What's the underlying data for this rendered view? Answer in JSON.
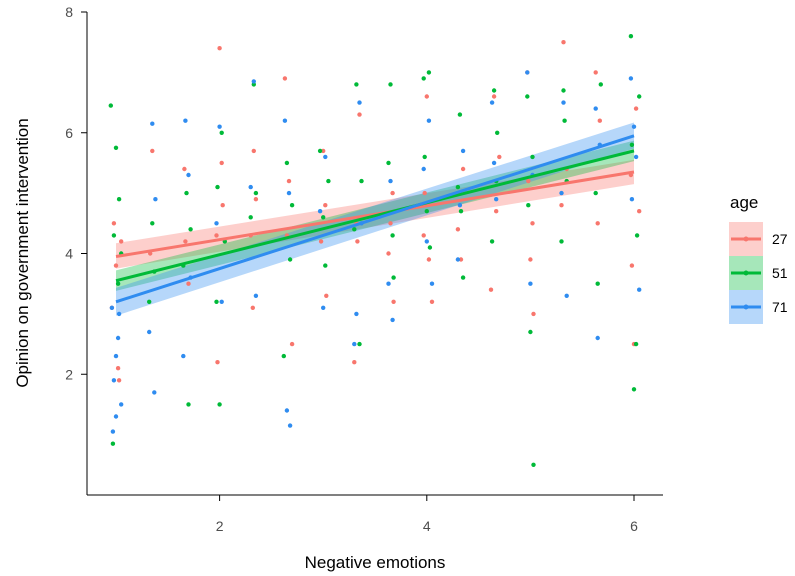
{
  "chart_data": {
    "type": "scatter",
    "title": "",
    "xlabel": "Negative emotions",
    "ylabel": "Opinion on government intervention",
    "xlim": [
      0.72,
      6.28
    ],
    "ylim": [
      0.0,
      8.0
    ],
    "x_ticks": [
      "2",
      "4",
      "6"
    ],
    "y_ticks": [
      "2",
      "4",
      "6",
      "8"
    ],
    "grid": false,
    "legend": {
      "title": "age",
      "position": "right"
    },
    "series": [
      {
        "name": "27",
        "color": "#f8766d",
        "fit": {
          "x": [
            1.0,
            6.0
          ],
          "y": [
            3.95,
            5.35
          ]
        },
        "band": {
          "lower": [
            3.75,
            5.15
          ],
          "upper": [
            4.17,
            5.55
          ]
        },
        "points": [
          [
            0.98,
            4.5
          ],
          [
            1.0,
            3.8
          ],
          [
            1.02,
            2.1
          ],
          [
            1.05,
            4.2
          ],
          [
            0.96,
            3.1
          ],
          [
            1.03,
            1.9
          ],
          [
            1.33,
            4.0
          ],
          [
            1.35,
            5.7
          ],
          [
            1.67,
            4.2
          ],
          [
            1.7,
            3.5
          ],
          [
            1.66,
            5.4
          ],
          [
            1.97,
            4.3
          ],
          [
            2.0,
            7.4
          ],
          [
            2.03,
            4.8
          ],
          [
            1.98,
            2.2
          ],
          [
            2.02,
            5.5
          ],
          [
            2.3,
            4.3
          ],
          [
            2.33,
            5.7
          ],
          [
            2.35,
            4.9
          ],
          [
            2.32,
            3.1
          ],
          [
            2.63,
            6.9
          ],
          [
            2.65,
            4.3
          ],
          [
            2.7,
            2.5
          ],
          [
            2.67,
            5.2
          ],
          [
            2.98,
            4.2
          ],
          [
            3.0,
            5.7
          ],
          [
            3.03,
            3.3
          ],
          [
            3.02,
            4.8
          ],
          [
            3.32,
            4.5
          ],
          [
            3.35,
            6.3
          ],
          [
            3.33,
            4.2
          ],
          [
            3.3,
            2.2
          ],
          [
            3.65,
            4.5
          ],
          [
            3.68,
            3.2
          ],
          [
            3.67,
            5.0
          ],
          [
            3.63,
            4.0
          ],
          [
            3.97,
            4.3
          ],
          [
            4.0,
            6.6
          ],
          [
            4.02,
            3.9
          ],
          [
            4.05,
            3.2
          ],
          [
            3.98,
            5.0
          ],
          [
            4.3,
            4.4
          ],
          [
            4.33,
            3.9
          ],
          [
            4.35,
            5.4
          ],
          [
            4.65,
            6.6
          ],
          [
            4.67,
            4.7
          ],
          [
            4.62,
            3.4
          ],
          [
            4.7,
            5.6
          ],
          [
            4.97,
            7.0
          ],
          [
            5.0,
            3.9
          ],
          [
            5.02,
            4.5
          ],
          [
            5.03,
            3.0
          ],
          [
            4.98,
            5.2
          ],
          [
            5.32,
            7.5
          ],
          [
            5.35,
            5.4
          ],
          [
            5.3,
            4.8
          ],
          [
            5.63,
            7.0
          ],
          [
            5.65,
            4.5
          ],
          [
            5.67,
            6.2
          ],
          [
            5.97,
            5.3
          ],
          [
            6.0,
            2.5
          ],
          [
            6.02,
            6.4
          ],
          [
            6.05,
            4.7
          ],
          [
            5.98,
            3.8
          ]
        ]
      },
      {
        "name": "51",
        "color": "#00ba38",
        "fit": {
          "x": [
            1.0,
            6.0
          ],
          "y": [
            3.55,
            5.7
          ]
        },
        "band": {
          "lower": [
            3.38,
            5.53
          ],
          "upper": [
            3.72,
            5.87
          ]
        },
        "points": [
          [
            0.95,
            6.45
          ],
          [
            1.0,
            5.75
          ],
          [
            1.03,
            4.9
          ],
          [
            0.97,
            0.85
          ],
          [
            1.02,
            3.5
          ],
          [
            1.05,
            4.0
          ],
          [
            0.98,
            4.3
          ],
          [
            1.32,
            3.2
          ],
          [
            1.35,
            4.5
          ],
          [
            1.37,
            3.7
          ],
          [
            1.68,
            5.0
          ],
          [
            1.7,
            1.5
          ],
          [
            1.65,
            3.8
          ],
          [
            1.72,
            4.4
          ],
          [
            1.98,
            5.1
          ],
          [
            2.0,
            1.5
          ],
          [
            2.02,
            6.0
          ],
          [
            2.05,
            4.2
          ],
          [
            1.97,
            3.2
          ],
          [
            2.33,
            6.8
          ],
          [
            2.3,
            4.6
          ],
          [
            2.35,
            5.0
          ],
          [
            2.65,
            5.5
          ],
          [
            2.68,
            3.9
          ],
          [
            2.7,
            4.8
          ],
          [
            2.62,
            2.3
          ],
          [
            2.97,
            5.7
          ],
          [
            3.0,
            4.6
          ],
          [
            3.02,
            3.8
          ],
          [
            3.05,
            5.2
          ],
          [
            3.32,
            6.8
          ],
          [
            3.35,
            2.5
          ],
          [
            3.37,
            5.2
          ],
          [
            3.3,
            4.4
          ],
          [
            3.65,
            6.8
          ],
          [
            3.67,
            4.3
          ],
          [
            3.63,
            5.5
          ],
          [
            3.68,
            3.6
          ],
          [
            3.97,
            6.9
          ],
          [
            4.0,
            4.7
          ],
          [
            4.02,
            7.0
          ],
          [
            4.03,
            4.1
          ],
          [
            3.98,
            5.6
          ],
          [
            4.32,
            6.3
          ],
          [
            4.35,
            3.6
          ],
          [
            4.3,
            5.1
          ],
          [
            4.33,
            4.7
          ],
          [
            4.65,
            6.7
          ],
          [
            4.67,
            5.2
          ],
          [
            4.63,
            4.2
          ],
          [
            4.68,
            6.0
          ],
          [
            4.97,
            6.6
          ],
          [
            5.0,
            2.7
          ],
          [
            5.02,
            5.6
          ],
          [
            5.03,
            0.5
          ],
          [
            4.98,
            4.8
          ],
          [
            5.32,
            6.7
          ],
          [
            5.35,
            5.2
          ],
          [
            5.3,
            4.2
          ],
          [
            5.33,
            6.2
          ],
          [
            5.65,
            3.5
          ],
          [
            5.68,
            6.8
          ],
          [
            5.63,
            5.0
          ],
          [
            5.97,
            7.6
          ],
          [
            6.0,
            1.75
          ],
          [
            6.02,
            2.5
          ],
          [
            6.05,
            6.6
          ],
          [
            5.98,
            5.8
          ],
          [
            6.03,
            4.3
          ]
        ]
      },
      {
        "name": "71",
        "color": "#2f8cf0",
        "fit": {
          "x": [
            1.0,
            6.0
          ],
          "y": [
            3.2,
            5.95
          ]
        },
        "band": {
          "lower": [
            2.97,
            5.74
          ],
          "upper": [
            3.43,
            6.17
          ]
        },
        "points": [
          [
            0.96,
            3.1
          ],
          [
            0.98,
            1.9
          ],
          [
            1.0,
            1.3
          ],
          [
            1.02,
            2.6
          ],
          [
            1.05,
            1.5
          ],
          [
            0.97,
            1.05
          ],
          [
            1.03,
            3.0
          ],
          [
            1.0,
            2.3
          ],
          [
            1.35,
            6.15
          ],
          [
            1.37,
            1.7
          ],
          [
            1.32,
            2.7
          ],
          [
            1.38,
            4.9
          ],
          [
            1.67,
            6.2
          ],
          [
            1.7,
            5.3
          ],
          [
            1.65,
            2.3
          ],
          [
            1.72,
            3.6
          ],
          [
            2.0,
            6.1
          ],
          [
            2.02,
            3.2
          ],
          [
            1.97,
            4.5
          ],
          [
            2.33,
            6.85
          ],
          [
            2.35,
            3.3
          ],
          [
            2.3,
            5.1
          ],
          [
            2.65,
            1.4
          ],
          [
            2.68,
            1.15
          ],
          [
            2.67,
            5.0
          ],
          [
            2.63,
            6.2
          ],
          [
            2.97,
            4.7
          ],
          [
            3.0,
            3.1
          ],
          [
            3.02,
            5.6
          ],
          [
            3.32,
            3.0
          ],
          [
            3.35,
            6.5
          ],
          [
            3.3,
            2.5
          ],
          [
            3.37,
            4.5
          ],
          [
            3.65,
            5.2
          ],
          [
            3.67,
            2.9
          ],
          [
            3.63,
            3.5
          ],
          [
            3.97,
            5.4
          ],
          [
            4.0,
            4.2
          ],
          [
            4.02,
            6.2
          ],
          [
            4.05,
            3.5
          ],
          [
            4.32,
            4.8
          ],
          [
            4.35,
            5.7
          ],
          [
            4.3,
            3.9
          ],
          [
            4.65,
            5.5
          ],
          [
            4.67,
            4.9
          ],
          [
            4.63,
            6.5
          ],
          [
            4.97,
            7.0
          ],
          [
            5.0,
            3.5
          ],
          [
            5.02,
            5.3
          ],
          [
            5.35,
            3.3
          ],
          [
            5.32,
            6.5
          ],
          [
            5.3,
            5.0
          ],
          [
            5.65,
            2.6
          ],
          [
            5.67,
            5.8
          ],
          [
            5.63,
            6.4
          ],
          [
            5.97,
            6.9
          ],
          [
            6.0,
            6.1
          ],
          [
            6.02,
            5.6
          ],
          [
            6.05,
            3.4
          ],
          [
            5.98,
            4.9
          ]
        ]
      }
    ]
  }
}
